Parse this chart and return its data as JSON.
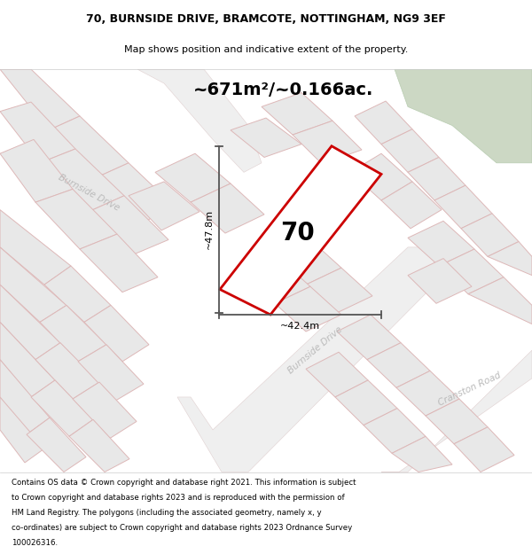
{
  "title_line1": "70, BURNSIDE DRIVE, BRAMCOTE, NOTTINGHAM, NG9 3EF",
  "title_line2": "Map shows position and indicative extent of the property.",
  "area_text": "~671m²/~0.166ac.",
  "house_number": "70",
  "dim_vertical": "~47.8m",
  "dim_horizontal": "~42.4m",
  "label_burnside_drive_upper": "Burnside Drive",
  "label_burnside_drive_lower": "Burnside Drive",
  "label_cranston_road": "Cranston Road",
  "footer_lines": [
    "Contains OS data © Crown copyright and database right 2021. This information is subject",
    "to Crown copyright and database rights 2023 and is reproduced with the permission of",
    "HM Land Registry. The polygons (including the associated geometry, namely x, y",
    "co-ordinates) are subject to Crown copyright and database rights 2023 Ordnance Survey",
    "100026316."
  ],
  "map_bg": "#f7f7f7",
  "block_fill": "#e8e8e8",
  "block_edge": "#ddb8b8",
  "road_fill": "#efefef",
  "highlight_fill": "#ffffff",
  "highlight_edge": "#cc0000",
  "green_fill": "#ccd8c4",
  "dim_color": "#555555",
  "street_color": "#bbbbbb"
}
